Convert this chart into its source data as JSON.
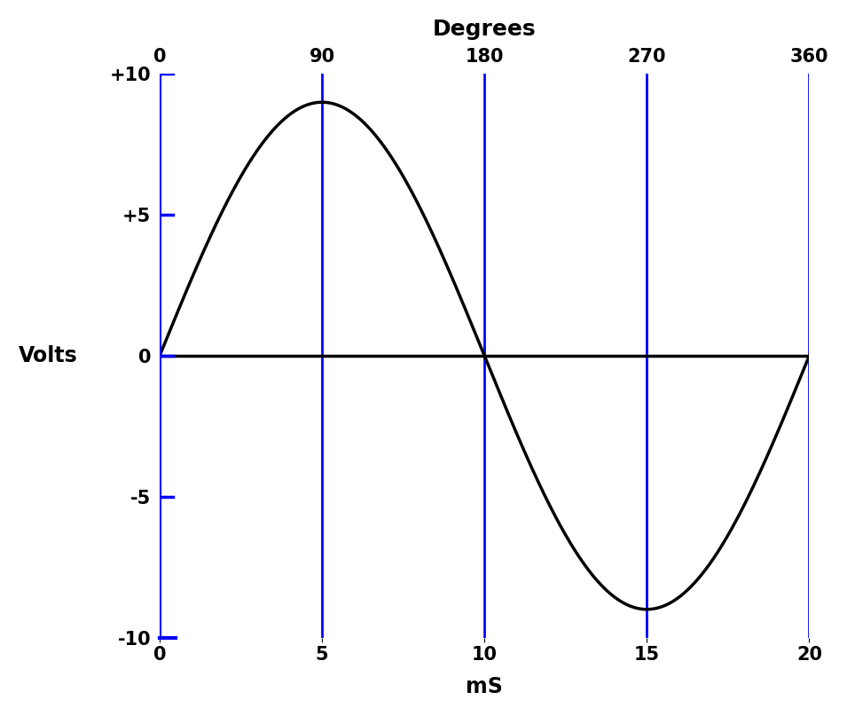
{
  "title_top": "Degrees",
  "xlabel_bottom": "mS",
  "ylabel": "Volts",
  "amplitude": 9.0,
  "period_ms": 20.0,
  "xlim": [
    0,
    20
  ],
  "ylim": [
    -10,
    10
  ],
  "yticks": [
    -10,
    -5,
    0,
    5,
    10
  ],
  "ytick_labels": [
    "-10",
    "-5",
    "0",
    "+5",
    "+10"
  ],
  "xticks_bottom": [
    0,
    5,
    10,
    15,
    20
  ],
  "xtick_labels_bottom": [
    "0",
    "5",
    "10",
    "15",
    "20"
  ],
  "xticks_top": [
    0,
    5,
    10,
    15,
    20
  ],
  "xtick_labels_top": [
    "0",
    "90",
    "180",
    "270",
    "360"
  ],
  "vline_positions": [
    5,
    10,
    15,
    20
  ],
  "vline_color": "#0000FF",
  "axis_color": "#0000FF",
  "sine_color": "#000000",
  "sine_linewidth": 2.5,
  "vline_linewidth": 2.0,
  "axis_linewidth": 3.0,
  "background_color": "#FFFFFF",
  "font_size_title": 18,
  "font_size_ticks": 15,
  "font_size_ylabel": 17,
  "font_size_xlabel": 17,
  "tick_label_color": "#000000",
  "tick_color": "#0000FF"
}
